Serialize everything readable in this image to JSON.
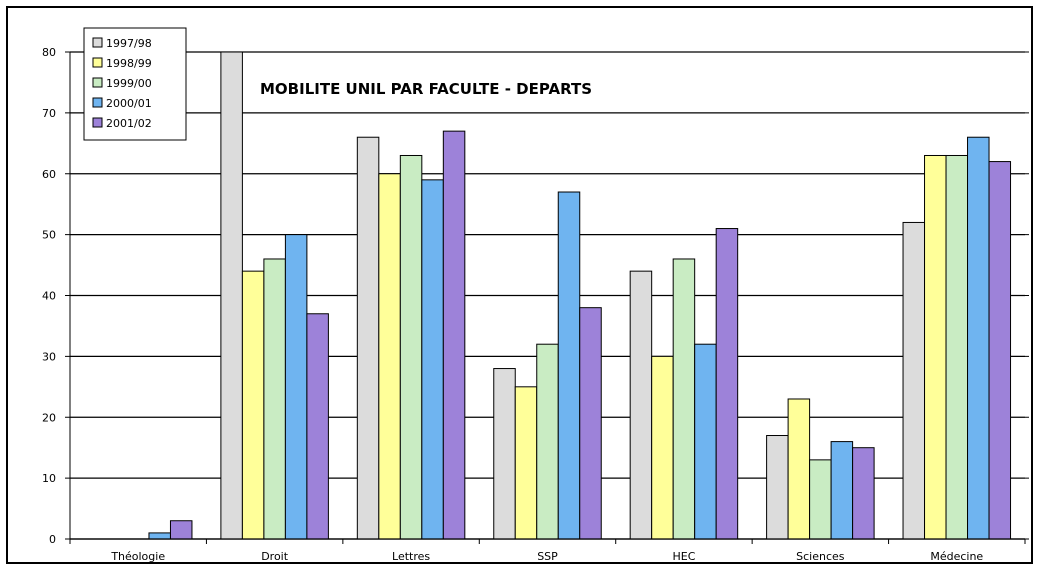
{
  "chart_data": {
    "type": "bar",
    "title": "MOBILITE UNIL PAR FACULTE - DEPARTS",
    "xlabel": "",
    "ylabel": "",
    "ylim": [
      0,
      80
    ],
    "yticks": [
      0,
      10,
      20,
      30,
      40,
      50,
      60,
      70,
      80
    ],
    "grid": true,
    "legend_position": "top-left",
    "categories": [
      "Théologie",
      "Droit",
      "Lettres",
      "SSP",
      "HEC",
      "Sciences",
      "Médecine"
    ],
    "series": [
      {
        "name": "1997/98",
        "color": "#dcdcdc",
        "values": [
          0,
          80,
          66,
          28,
          44,
          17,
          52
        ]
      },
      {
        "name": "1998/99",
        "color": "#ffff99",
        "values": [
          0,
          44,
          60,
          25,
          30,
          23,
          63
        ]
      },
      {
        "name": "1999/00",
        "color": "#c9ecc3",
        "values": [
          0,
          46,
          63,
          32,
          46,
          13,
          63
        ]
      },
      {
        "name": "2000/01",
        "color": "#6fb4f0",
        "values": [
          1,
          50,
          59,
          57,
          32,
          16,
          66
        ]
      },
      {
        "name": "2001/02",
        "color": "#9d82d9",
        "values": [
          3,
          37,
          67,
          38,
          51,
          15,
          62
        ]
      }
    ]
  }
}
